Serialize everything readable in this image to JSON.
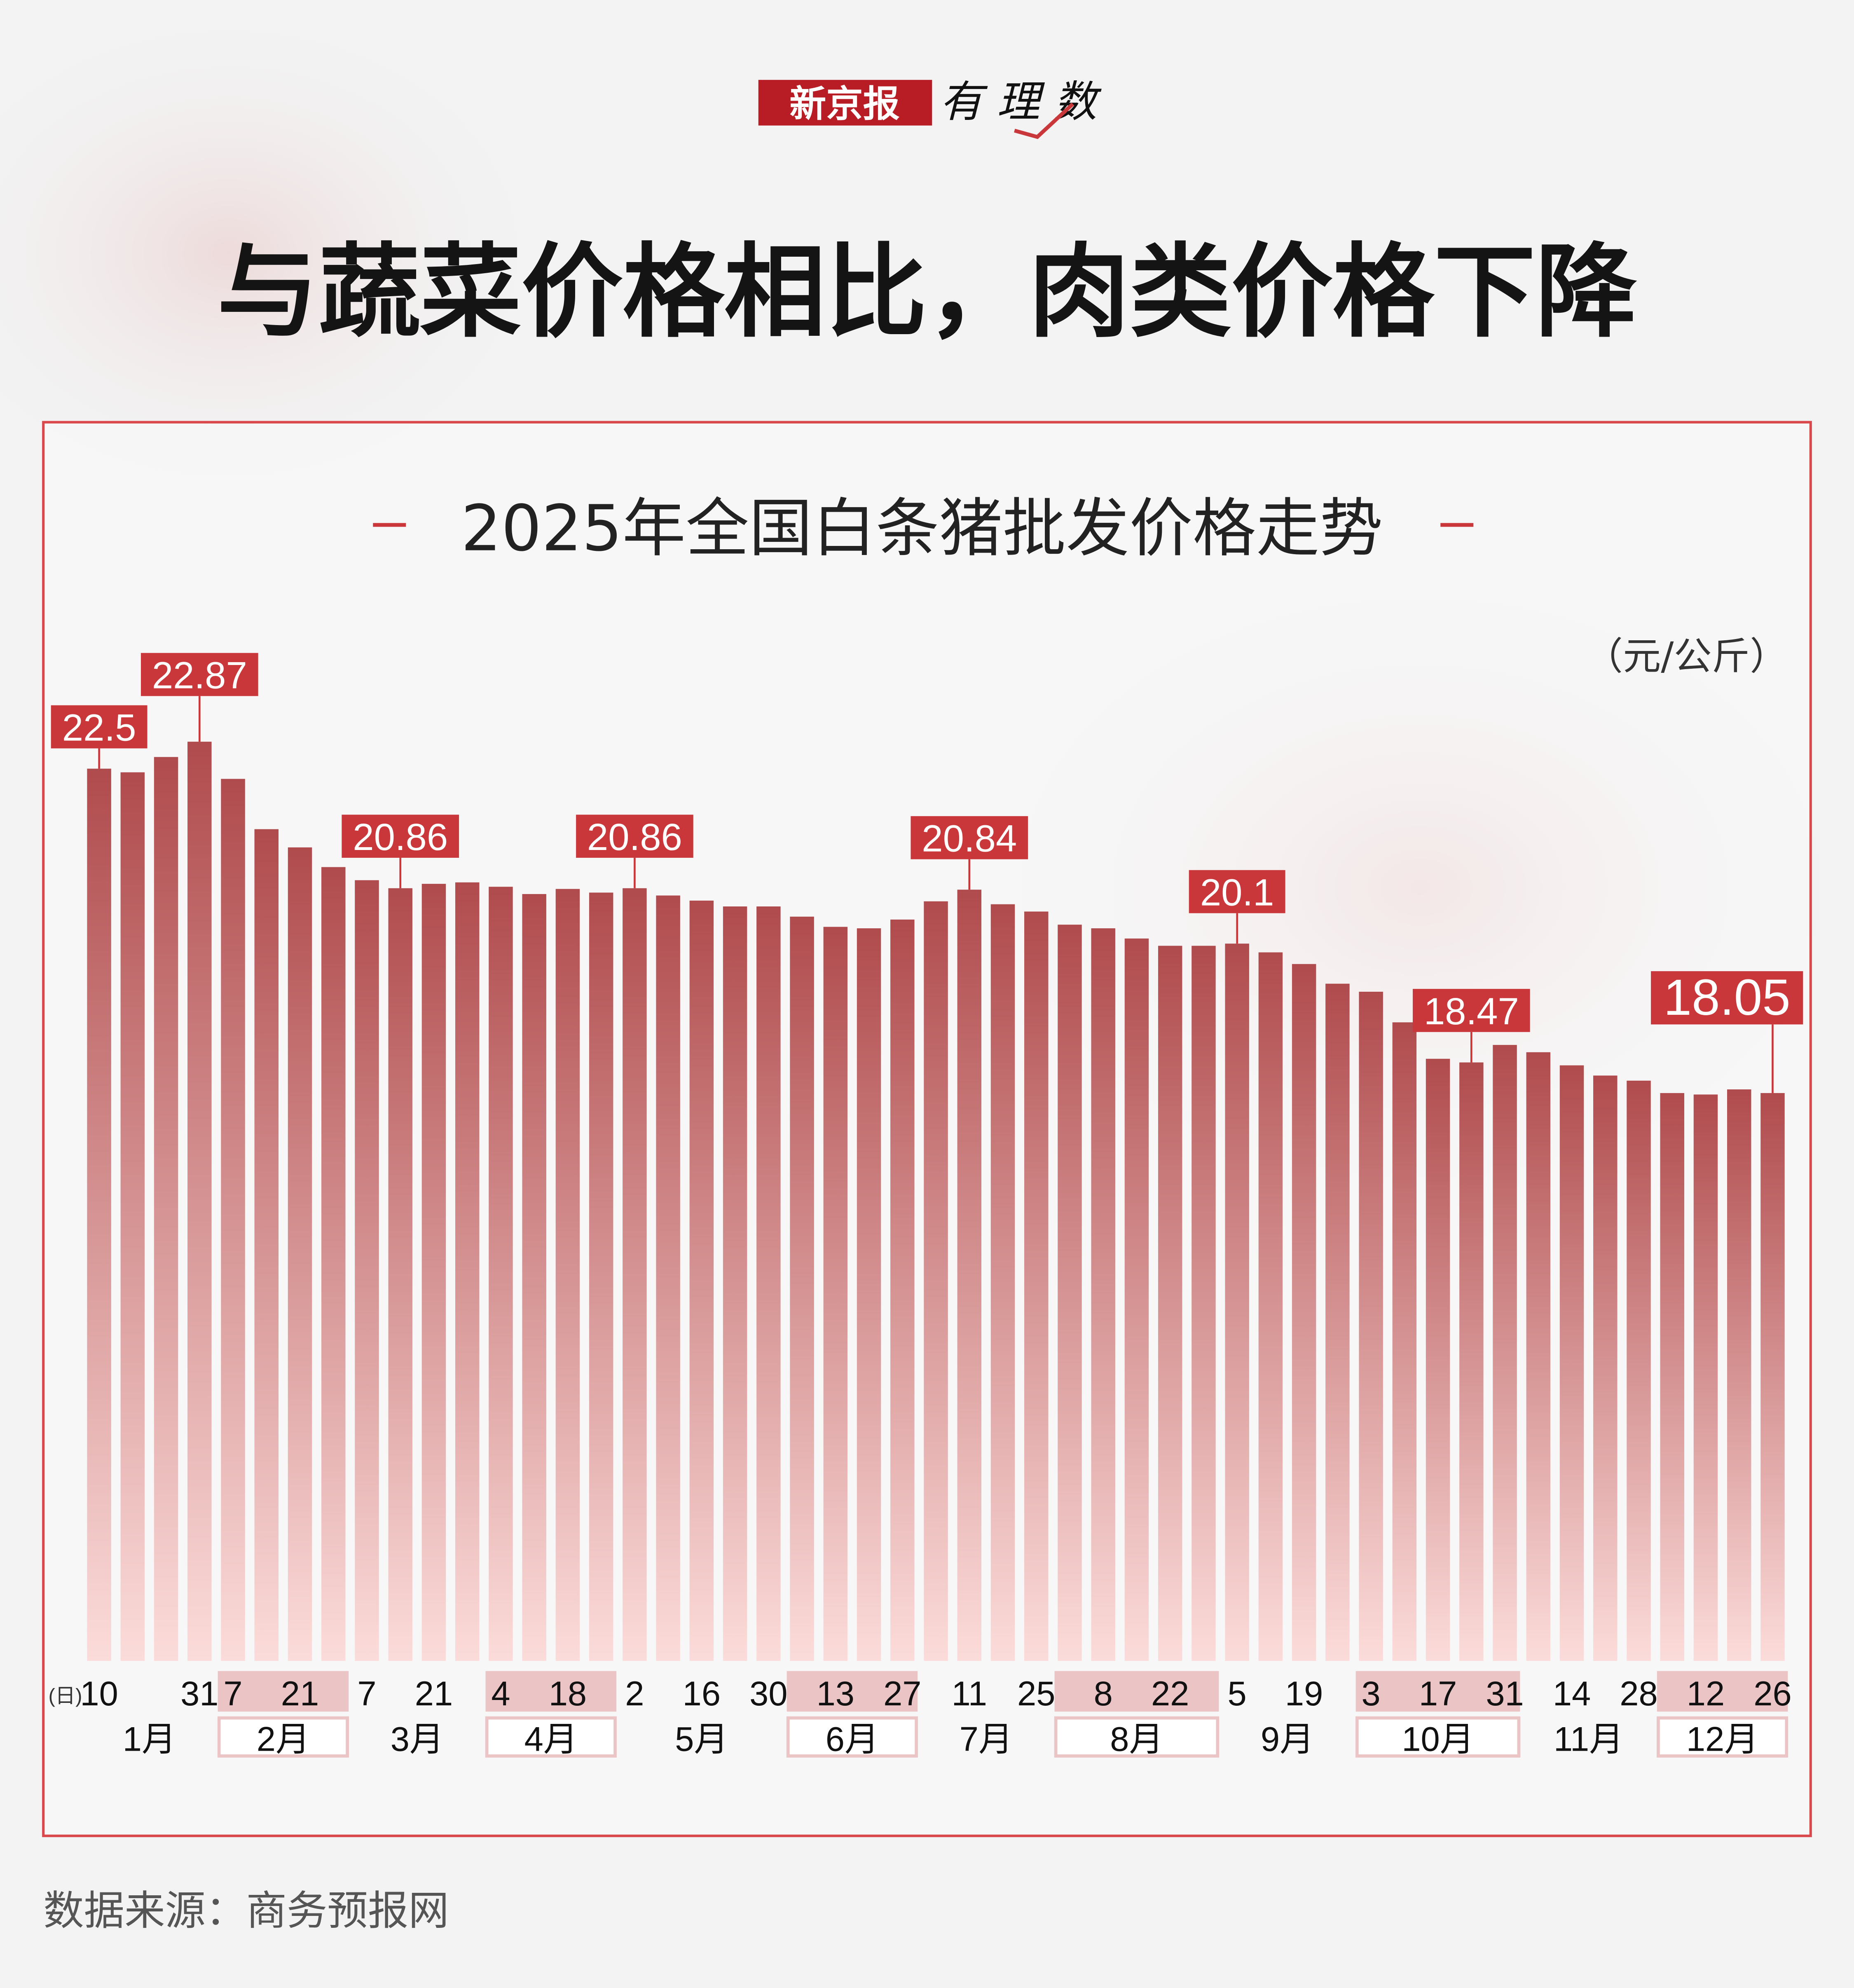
{
  "logo": {
    "brand": "新京报",
    "column": "有理数"
  },
  "headline": "与蔬菜价格相比，肉类价格下降",
  "colors": {
    "accent": "#c9373a",
    "bar_top": "#b04b4d",
    "bar_bottom": "#fbdcda",
    "frame": "#d9484a",
    "shade": "#ebc4c5"
  },
  "source": "数据来源：商务预报网",
  "chart_data": {
    "type": "bar",
    "title": "2025年全国白条猪批发价格走势",
    "ylabel": "（元/公斤）",
    "xlabel": "(日)",
    "ylim": [
      10.26,
      22.87
    ],
    "grid": false,
    "categories": [
      "1-10",
      "1-17",
      "1-24",
      "1-31",
      "2-7",
      "2-14",
      "2-21",
      "2-28",
      "3-7",
      "3-14",
      "3-21",
      "3-28",
      "4-4",
      "4-11",
      "4-18",
      "4-25",
      "5-2",
      "5-9",
      "5-16",
      "5-23",
      "5-30",
      "6-6",
      "6-13",
      "6-20",
      "6-27",
      "7-4",
      "7-11",
      "7-18",
      "7-25",
      "8-1",
      "8-8",
      "8-15",
      "8-22",
      "8-29",
      "9-5",
      "9-12",
      "9-19",
      "9-26",
      "10-3",
      "10-10",
      "10-17",
      "10-24",
      "10-31",
      "11-7",
      "11-14",
      "11-21",
      "11-28",
      "12-5",
      "12-12",
      "12-19",
      "12-26"
    ],
    "values": [
      22.5,
      22.45,
      22.66,
      22.87,
      22.36,
      21.67,
      21.42,
      21.15,
      20.97,
      20.86,
      20.92,
      20.94,
      20.88,
      20.78,
      20.85,
      20.8,
      20.86,
      20.76,
      20.69,
      20.61,
      20.61,
      20.47,
      20.33,
      20.31,
      20.43,
      20.68,
      20.84,
      20.64,
      20.54,
      20.36,
      20.31,
      20.17,
      20.07,
      20.07,
      20.1,
      19.98,
      19.82,
      19.55,
      19.44,
      19.02,
      18.52,
      18.47,
      18.71,
      18.61,
      18.43,
      18.29,
      18.22,
      18.05,
      18.03,
      18.1,
      18.05
    ],
    "data_labels": [
      {
        "index": 0,
        "text": "22.5"
      },
      {
        "index": 3,
        "text": "22.87"
      },
      {
        "index": 9,
        "text": "20.86"
      },
      {
        "index": 16,
        "text": "20.86"
      },
      {
        "index": 26,
        "text": "20.84"
      },
      {
        "index": 34,
        "text": "20.1"
      },
      {
        "index": 41,
        "text": "18.47"
      },
      {
        "index": 50,
        "text": "18.05",
        "emphasis": true
      }
    ],
    "day_ticks": [
      {
        "index": 0,
        "text": "10"
      },
      {
        "index": 3,
        "text": "31"
      },
      {
        "index": 4,
        "text": "7"
      },
      {
        "index": 6,
        "text": "21"
      },
      {
        "index": 8,
        "text": "7"
      },
      {
        "index": 10,
        "text": "21"
      },
      {
        "index": 12,
        "text": "4"
      },
      {
        "index": 14,
        "text": "18"
      },
      {
        "index": 16,
        "text": "2"
      },
      {
        "index": 18,
        "text": "16"
      },
      {
        "index": 20,
        "text": "30"
      },
      {
        "index": 22,
        "text": "13"
      },
      {
        "index": 24,
        "text": "27"
      },
      {
        "index": 26,
        "text": "11"
      },
      {
        "index": 28,
        "text": "25"
      },
      {
        "index": 30,
        "text": "8"
      },
      {
        "index": 32,
        "text": "22"
      },
      {
        "index": 34,
        "text": "5"
      },
      {
        "index": 36,
        "text": "19"
      },
      {
        "index": 38,
        "text": "3"
      },
      {
        "index": 40,
        "text": "17"
      },
      {
        "index": 42,
        "text": "31"
      },
      {
        "index": 44,
        "text": "14"
      },
      {
        "index": 46,
        "text": "28"
      },
      {
        "index": 48,
        "text": "12"
      },
      {
        "index": 50,
        "text": "26"
      }
    ],
    "months": [
      {
        "label": "1月",
        "start": 0,
        "end": 3,
        "shaded": false
      },
      {
        "label": "2月",
        "start": 4,
        "end": 7,
        "shaded": true
      },
      {
        "label": "3月",
        "start": 8,
        "end": 11,
        "shaded": false
      },
      {
        "label": "4月",
        "start": 12,
        "end": 15,
        "shaded": true
      },
      {
        "label": "5月",
        "start": 16,
        "end": 20,
        "shaded": false
      },
      {
        "label": "6月",
        "start": 21,
        "end": 24,
        "shaded": true
      },
      {
        "label": "7月",
        "start": 25,
        "end": 28,
        "shaded": false
      },
      {
        "label": "8月",
        "start": 29,
        "end": 33,
        "shaded": true
      },
      {
        "label": "9月",
        "start": 34,
        "end": 37,
        "shaded": false
      },
      {
        "label": "10月",
        "start": 38,
        "end": 42,
        "shaded": true
      },
      {
        "label": "11月",
        "start": 43,
        "end": 46,
        "shaded": false
      },
      {
        "label": "12月",
        "start": 47,
        "end": 50,
        "shaded": true
      }
    ]
  }
}
